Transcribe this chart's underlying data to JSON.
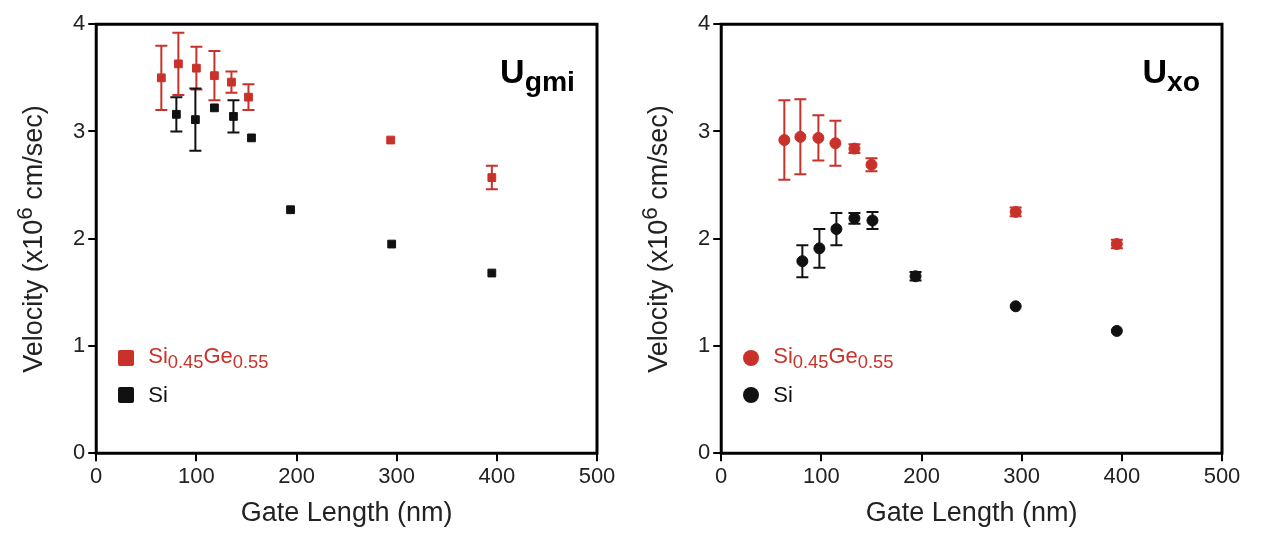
{
  "chart_data": [
    {
      "type": "scatter",
      "xlabel": "Gate Length (nm)",
      "ylabel": "Velocity (x10$^{6}$ cm/sec)",
      "xlim": [
        0,
        500
      ],
      "xticks": [
        0,
        100,
        200,
        300,
        400,
        500
      ],
      "ylim": [
        0,
        4
      ],
      "yticks": [
        0,
        1,
        2,
        3,
        4
      ],
      "marker": "square",
      "legend": "bottom left",
      "annotations": [
        "U$_{gmi}$"
      ],
      "series": [
        {
          "name": "Si$_{0.45}$Ge$_{0.55}$",
          "color": "#c8322a",
          "x": [
            65,
            82,
            100,
            118,
            135,
            152,
            294,
            395
          ],
          "values": [
            3.5,
            3.63,
            3.59,
            3.52,
            3.46,
            3.32,
            2.92,
            2.57
          ],
          "errors": [
            0.3,
            0.29,
            0.2,
            0.23,
            0.1,
            0.12,
            null,
            0.11
          ]
        },
        {
          "name": "Si",
          "color": "#111111",
          "x": [
            80,
            99,
            118,
            137,
            155,
            194,
            295,
            395
          ],
          "values": [
            3.16,
            3.11,
            3.22,
            3.14,
            2.94,
            2.27,
            1.95,
            1.68
          ],
          "errors": [
            0.16,
            0.29,
            null,
            0.15,
            null,
            null,
            null,
            null
          ]
        }
      ]
    },
    {
      "type": "scatter",
      "xlabel": "Gate Length (nm)",
      "ylabel": "Velocity (x10$^{6}$ cm/sec)",
      "xlim": [
        0,
        500
      ],
      "xticks": [
        0,
        100,
        200,
        300,
        400,
        500
      ],
      "ylim": [
        0,
        4
      ],
      "yticks": [
        0,
        1,
        2,
        3,
        4
      ],
      "marker": "circle",
      "legend": "bottom left",
      "annotations": [
        "U$_{xo}$"
      ],
      "series": [
        {
          "name": "Si$_{0.45}$Ge$_{0.55}$",
          "color": "#c8322a",
          "x": [
            63,
            79,
            97,
            114,
            133,
            150,
            294,
            395
          ],
          "values": [
            2.92,
            2.95,
            2.94,
            2.89,
            2.84,
            2.69,
            2.25,
            1.95
          ],
          "errors": [
            0.37,
            0.35,
            0.21,
            0.21,
            0.04,
            0.06,
            0.04,
            0.04
          ]
        },
        {
          "name": "Si",
          "color": "#111111",
          "x": [
            81,
            98,
            115,
            133,
            151,
            194,
            294,
            395
          ],
          "values": [
            1.79,
            1.91,
            2.09,
            2.19,
            2.17,
            1.65,
            1.37,
            1.14
          ],
          "errors": [
            0.15,
            0.18,
            0.15,
            0.05,
            0.08,
            0.04,
            null,
            null
          ]
        }
      ]
    }
  ]
}
